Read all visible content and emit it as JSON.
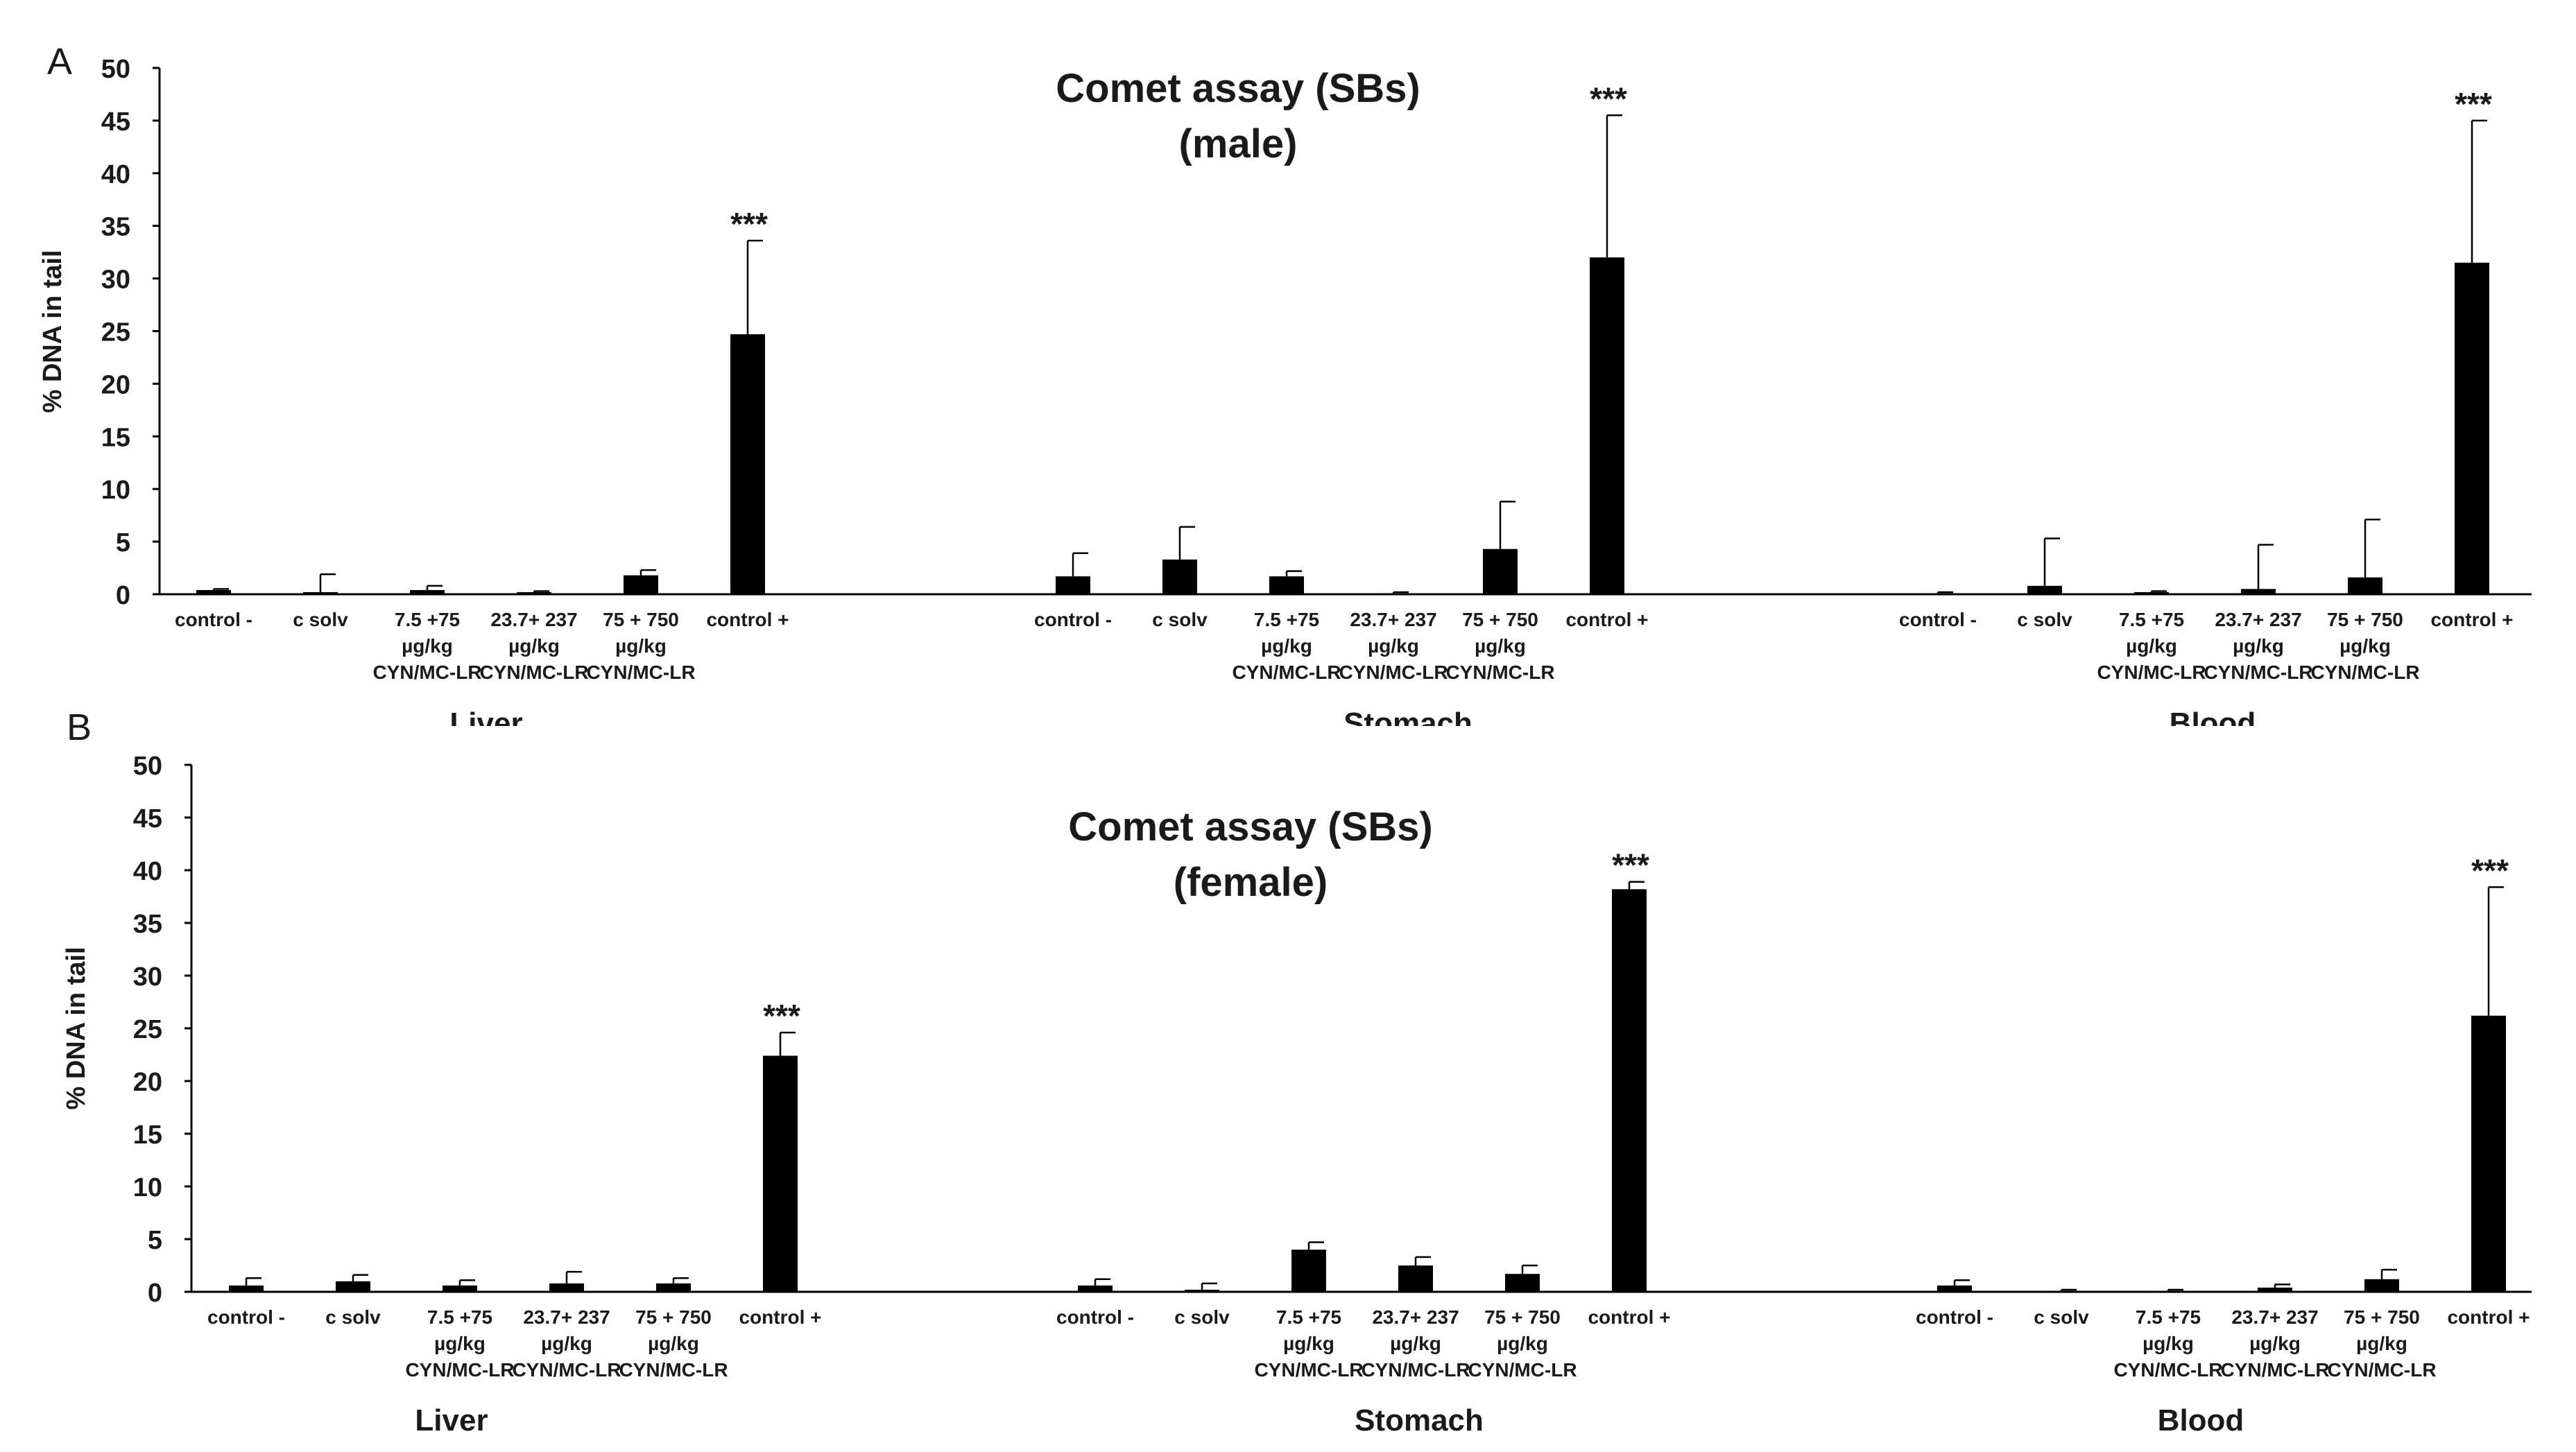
{
  "figure": {
    "panels": [
      "A",
      "B"
    ]
  },
  "chart_data": [
    {
      "type": "bar",
      "panel": "A",
      "title": "Comet assay (SBs)",
      "subtitle": "(male)",
      "ylabel": "% DNA  in tail",
      "ylim": [
        0,
        50
      ],
      "yticks": [
        0,
        5,
        10,
        15,
        20,
        25,
        30,
        35,
        40,
        45,
        50
      ],
      "grid": false,
      "bar_color": "#000000",
      "categories": [
        [
          "control -"
        ],
        [
          "c solv"
        ],
        [
          "7.5 +75",
          "µg/kg",
          "CYN/MC-LR"
        ],
        [
          "23.7+ 237",
          "µg/kg",
          "CYN/MC-LR"
        ],
        [
          "75 + 750",
          "µg/kg",
          "CYN/MC-LR"
        ],
        [
          "control +"
        ]
      ],
      "groups": [
        {
          "name": "Liver",
          "values": [
            0.4,
            0.2,
            0.4,
            0.2,
            1.8,
            24.7
          ],
          "errors": [
            0.1,
            1.7,
            0.4,
            0.1,
            0.5,
            8.9
          ],
          "annotations": [
            "",
            "",
            "",
            "",
            "",
            "***"
          ]
        },
        {
          "name": "Stomach",
          "values": [
            1.7,
            3.3,
            1.7,
            0.1,
            4.3,
            32.0
          ],
          "errors": [
            2.2,
            3.1,
            0.5,
            0.1,
            4.5,
            13.5
          ],
          "annotations": [
            "",
            "",
            "",
            "",
            "",
            "***"
          ]
        },
        {
          "name": "Blood",
          "values": [
            0.1,
            0.8,
            0.2,
            0.5,
            1.6,
            31.5
          ],
          "errors": [
            0.1,
            4.5,
            0.1,
            4.2,
            5.5,
            13.5
          ],
          "annotations": [
            "",
            "",
            "",
            "",
            "",
            "***"
          ]
        }
      ]
    },
    {
      "type": "bar",
      "panel": "B",
      "title": "Comet assay (SBs)",
      "subtitle": "(female)",
      "ylabel": "% DNA  in tail",
      "ylim": [
        0,
        50
      ],
      "yticks": [
        0,
        5,
        10,
        15,
        20,
        25,
        30,
        35,
        40,
        45,
        50
      ],
      "grid": false,
      "bar_color": "#000000",
      "categories": [
        [
          "control -"
        ],
        [
          "c solv"
        ],
        [
          "7.5 +75",
          "µg/kg",
          "CYN/MC-LR"
        ],
        [
          "23.7+ 237",
          "µg/kg",
          "CYN/MC-LR"
        ],
        [
          "75 + 750",
          "µg/kg",
          "CYN/MC-LR"
        ],
        [
          "control +"
        ]
      ],
      "groups": [
        {
          "name": "Liver",
          "values": [
            0.6,
            1.0,
            0.6,
            0.8,
            0.8,
            22.4
          ],
          "errors": [
            0.7,
            0.6,
            0.5,
            1.1,
            0.5,
            2.2
          ],
          "annotations": [
            "",
            "",
            "",
            "",
            "",
            "***"
          ]
        },
        {
          "name": "Stomach",
          "values": [
            0.6,
            0.2,
            4.0,
            2.5,
            1.7,
            38.2
          ],
          "errors": [
            0.6,
            0.6,
            0.7,
            0.8,
            0.8,
            0.7
          ],
          "annotations": [
            "",
            "",
            "",
            "",
            "",
            "***"
          ]
        },
        {
          "name": "Blood",
          "values": [
            0.6,
            0.1,
            0.1,
            0.4,
            1.2,
            26.2
          ],
          "errors": [
            0.5,
            0.1,
            0.1,
            0.3,
            0.9,
            12.2
          ],
          "annotations": [
            "",
            "",
            "",
            "",
            "",
            "***"
          ]
        }
      ]
    }
  ]
}
